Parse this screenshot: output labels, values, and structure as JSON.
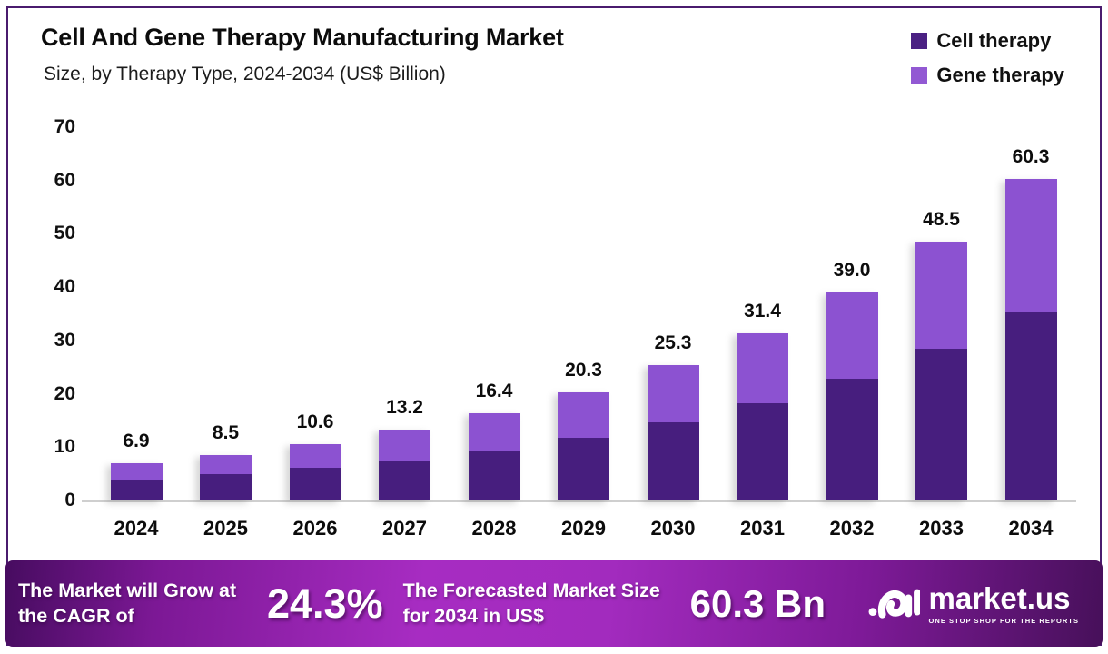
{
  "header": {
    "title": "Cell And Gene Therapy Manufacturing Market",
    "subtitle": "Size, by Therapy Type, 2024-2034 (US$ Billion)"
  },
  "legend": [
    {
      "label": "Cell therapy",
      "color": "#4b2183"
    },
    {
      "label": "Gene therapy",
      "color": "#9259d3"
    }
  ],
  "chart_data": {
    "type": "bar",
    "stacked": true,
    "title": "Cell And Gene Therapy Manufacturing Market Size, by Therapy Type, 2024-2034 (US$ Billion)",
    "categories": [
      "2024",
      "2025",
      "2026",
      "2027",
      "2028",
      "2029",
      "2030",
      "2031",
      "2032",
      "2033",
      "2034"
    ],
    "series": [
      {
        "name": "Cell therapy",
        "color": "#471e7e",
        "values": [
          4.0,
          4.9,
          6.1,
          7.5,
          9.3,
          11.7,
          14.6,
          18.3,
          22.9,
          28.5,
          35.3
        ]
      },
      {
        "name": "Gene therapy",
        "color": "#8c52d1",
        "values": [
          2.9,
          3.6,
          4.5,
          5.7,
          7.1,
          8.6,
          10.7,
          13.1,
          16.1,
          20.0,
          25.0
        ]
      }
    ],
    "totals": [
      6.9,
      8.5,
      10.6,
      13.2,
      16.4,
      20.3,
      25.3,
      31.4,
      39.0,
      48.5,
      60.3
    ],
    "total_labels": [
      "6.9",
      "8.5",
      "10.6",
      "13.2",
      "16.4",
      "20.3",
      "25.3",
      "31.4",
      "39.0",
      "48.5",
      "60.3"
    ],
    "xlabel": "",
    "ylabel": "",
    "ylim": [
      0,
      70
    ],
    "yticks": [
      0,
      10,
      20,
      30,
      40,
      50,
      60,
      70
    ],
    "grid": false,
    "legend_position": "top-right"
  },
  "banner": {
    "cagr_label": "The Market will Grow at the CAGR of",
    "cagr_value": "24.3%",
    "forecast_label": "The Forecasted Market Size for 2034 in US$",
    "forecast_value": "60.3 Bn",
    "brand": {
      "name": "market.us",
      "tagline": "ONE STOP SHOP FOR THE REPORTS"
    }
  }
}
